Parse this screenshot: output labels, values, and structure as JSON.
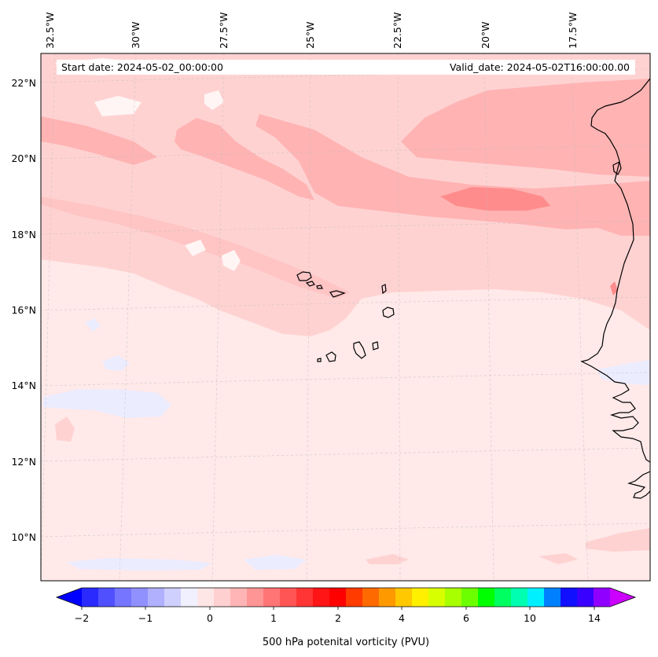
{
  "map": {
    "start_date_text": "Start date: 2024-05-02_00:00:00",
    "valid_date_text": "Valid_date: 2024-05-02T16:00:00.00",
    "longitude_labels": [
      "32.5°W",
      "30°W",
      "27.5°W",
      "25°W",
      "22.5°W",
      "20°W",
      "17.5°W"
    ],
    "latitude_labels": [
      "22°N",
      "20°N",
      "18°N",
      "16°N",
      "14°N",
      "12°N",
      "10°N"
    ],
    "colorbar": {
      "label": "500 hPa potenital vorticity (PVU)",
      "tick_labels": [
        "−2",
        "−1",
        "0",
        "1",
        "2",
        "4",
        "6",
        "10",
        "14"
      ],
      "colors": [
        "#0000ff",
        "#2a2aff",
        "#5050ff",
        "#7575ff",
        "#9090ff",
        "#b0b0ff",
        "#d0d0ff",
        "#f0f0ff",
        "#ffe6e6",
        "#ffd0d0",
        "#ffb5b5",
        "#ff9595",
        "#ff7575",
        "#ff5555",
        "#ff3535",
        "#ff1515",
        "#ff0000",
        "#ff3b00",
        "#ff6a00",
        "#ff9900",
        "#ffc800",
        "#fff000",
        "#d8ff00",
        "#a8ff00",
        "#6cff00",
        "#00ff00",
        "#00ff60",
        "#00ffb0",
        "#00f0ff",
        "#0080ff",
        "#1010ff",
        "#3a00ff",
        "#9000ff",
        "#cc00ff"
      ]
    },
    "field_colors": {
      "base": "#ffe9e9",
      "light": "#ffd2d2",
      "medium": "#ffb3b3",
      "strong": "#ff8c8c",
      "negative": "#ececff",
      "near_zero": "#fff5f5"
    }
  }
}
